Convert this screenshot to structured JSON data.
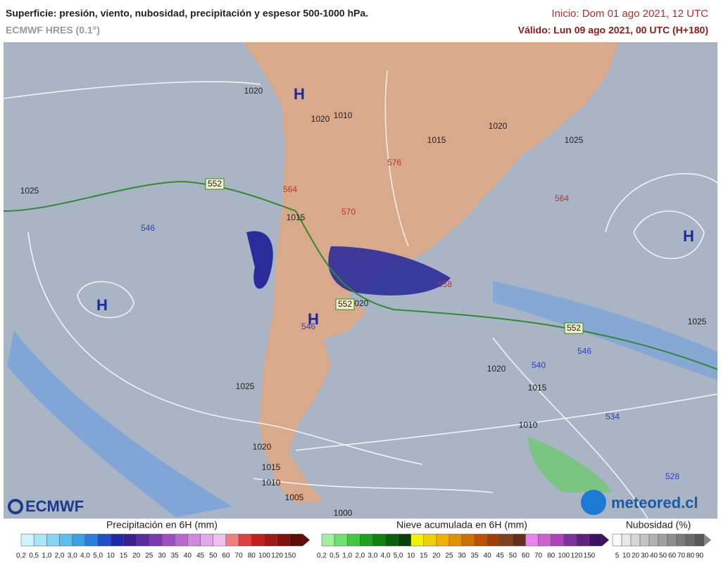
{
  "header": {
    "title": "Superficie: presión, viento, nubosidad, precipitación y espesor 500-1000 hPa.",
    "model": "ECMWF HRES (0.1°)",
    "start": "Inicio: Dom 01 ago 2021, 12 UTC",
    "valid": "Válido: Lun 09 ago 2021, 00 UTC (H+180)"
  },
  "map": {
    "highs": [
      "H",
      "H",
      "H",
      "H"
    ],
    "isobars": [
      "1020",
      "1020",
      "1010",
      "1015",
      "1020",
      "1025",
      "1025",
      "1015",
      "1020",
      "1025",
      "1020",
      "1015",
      "1010",
      "1025",
      "1020",
      "1015",
      "1010",
      "1005",
      "1000"
    ],
    "thickness_boxed": [
      "552",
      "552",
      "552"
    ],
    "thickness": [
      "546",
      "546",
      "546",
      "540",
      "534",
      "528",
      "558",
      "564",
      "564",
      "570",
      "576"
    ]
  },
  "logos": {
    "left": "ECMWF",
    "right": "meteored.cl"
  },
  "legend": {
    "precipitation": {
      "title": "Precipitación en 6H (mm)",
      "labels": [
        "0,2",
        "0,5",
        "1,0",
        "2,0",
        "3,0",
        "4,0",
        "5,0",
        "10",
        "15",
        "20",
        "25",
        "30",
        "35",
        "40",
        "45",
        "50",
        "60",
        "70",
        "80",
        "100",
        "120",
        "150"
      ]
    },
    "snow": {
      "title": "Nieve acumulada en 6H (mm)",
      "labels": [
        "0,2",
        "0,5",
        "1,0",
        "2,0",
        "3,0",
        "4,0",
        "5,0",
        "10",
        "15",
        "20",
        "25",
        "30",
        "35",
        "40",
        "45",
        "50",
        "60",
        "70",
        "80",
        "100",
        "120",
        "150"
      ]
    },
    "cloud": {
      "title": "Nubosidad (%)",
      "labels": [
        "5",
        "10",
        "20",
        "30",
        "40",
        "50",
        "60",
        "70",
        "80",
        "90"
      ]
    }
  }
}
